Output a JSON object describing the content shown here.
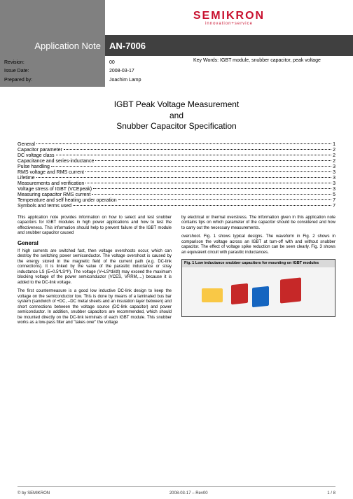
{
  "brand": {
    "name": "SEMIKRON",
    "tagline": "innovation+service",
    "color": "#c8102e"
  },
  "header": {
    "left_label": "Application Note",
    "right_label": "AN-7006"
  },
  "meta": {
    "revision_label": "Revision:",
    "revision_value": "00",
    "date_label": "Issue Date:",
    "date_value": "2008-03-17",
    "author_label": "Prepared by:",
    "author_value": "Joachim Lamp",
    "keywords_label": "Key Words:",
    "keywords_value": "IGBT module, snubber capacitor, peak voltage"
  },
  "title": {
    "line1": "IGBT Peak Voltage Measurement",
    "line2": "and",
    "line3": "Snubber Capacitor Specification"
  },
  "toc": [
    {
      "label": "General",
      "page": "1"
    },
    {
      "label": "Capacitor parameter",
      "page": "2"
    },
    {
      "label": "DC voltage class",
      "page": "2"
    },
    {
      "label": "Capacitance and series-inductance",
      "page": "2"
    },
    {
      "label": "Pulse handling",
      "page": "3"
    },
    {
      "label": "RMS voltage and RMS current",
      "page": "3"
    },
    {
      "label": "Lifetime",
      "page": "3"
    },
    {
      "label": "Measurements and verification",
      "page": "3"
    },
    {
      "label": "Voltage stress of IGBT (VCEpeak)",
      "page": "3"
    },
    {
      "label": "Measuring capacitor RMS current",
      "page": "5"
    },
    {
      "label": "Temperature and self heating under operation",
      "page": "7"
    },
    {
      "label": "Symbols and terms used",
      "page": "7"
    }
  ],
  "body": {
    "intro": "This application note provides information on how to select and test snubber capacitors for IGBT modules in high power applications and how to test the effectiveness. This information should help to prevent failure of the IGBT module and snubber capacitor caused",
    "general_heading": "General",
    "p1": "If high currents are switched fast, then voltage overshoots occur, which can destroy the switching power semiconductor. The voltage overshoot is caused by the energy stored in the magnetic field of the current path (e.g. DC-link connections). It is linked by the value of the parasitic inductance or stray inductance LS (E=0.5*LS*I²). The voltage (V=LS*di/dt) may exceed the maximum blocking voltage of the power semiconductor (VCES, VRRM,…) because it is added to the DC-link voltage.",
    "p2": "The first countermeasure is a good low inductive DC-link design to keep the voltage on the semiconductor low. This is done by means of a laminated bus bar system (sandwich of +DC, –DC metal sheets and an insulation layer between) and short connections between the voltage source (DC-link capacitor) and power semiconductor. In addition, snubber capacitors are recommended, which should be mounted directly on the DC-link terminals of each IGBT module. This snubber works as a low-pass filter and \"takes over\" the voltage",
    "col2_top": "by electrical or thermal overstress. The information given in this application note contains tips on which parameter of the capacitor should be considered and how to carry out the necessary measurements.",
    "p3": "overshoot. Fig. 1 shows typical designs. The waveform in Fig. 2 shows in comparison the voltage across an IGBT at turn-off with and without snubber capacitor. The effect of voltage spike reduction can be seen clearly. Fig. 3 shows an equivalent circuit with parasitic inductances."
  },
  "figure": {
    "caption": "Fig. 1 Low inductance snubber capacitors for mounting on IGBT modules"
  },
  "footer": {
    "left": "© by SEMIKRON",
    "center": "2008-03-17 – Rev00",
    "right": "1 / 8"
  },
  "colors": {
    "grey_light": "#808080",
    "grey_dark": "#404040",
    "page_bg": "#ffffff"
  }
}
